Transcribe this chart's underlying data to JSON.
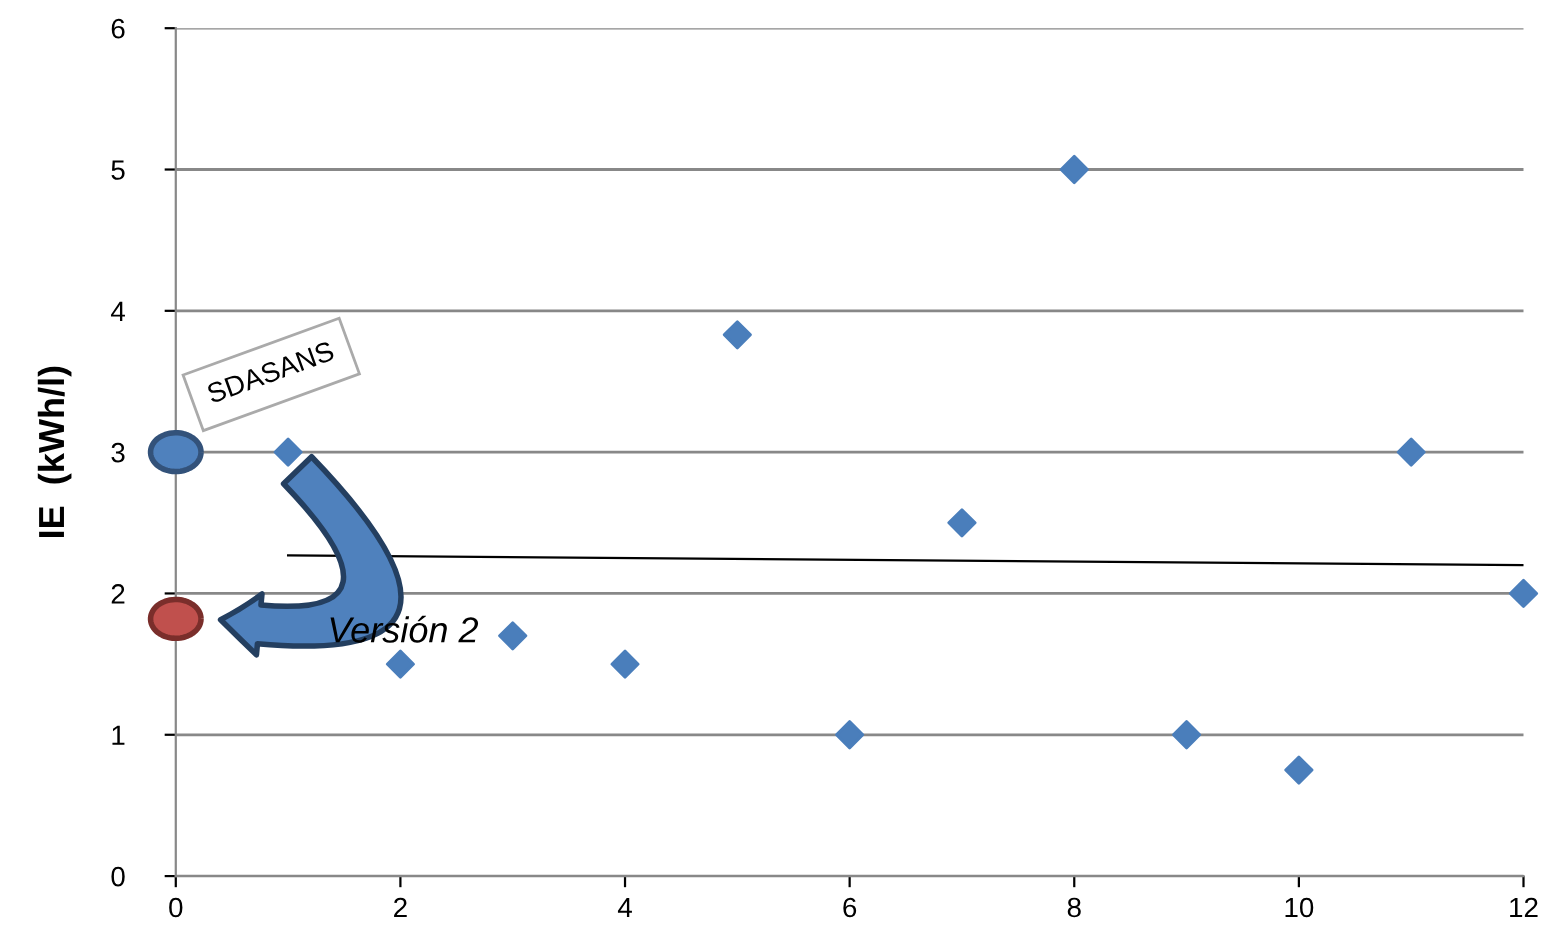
{
  "chart_data": {
    "type": "scatter",
    "ylabel": "IE  (kWh/l)",
    "xlim": [
      0,
      12
    ],
    "xticks": [
      0,
      2,
      4,
      6,
      8,
      10,
      12
    ],
    "ylim": [
      0,
      6
    ],
    "yticks": [
      0,
      1,
      2,
      3,
      4,
      5,
      6
    ],
    "grid": "y",
    "annotations": [
      "SDASANS",
      "Versión 2"
    ],
    "series": [
      {
        "color": "#4a7ebb",
        "marker": "diamond",
        "x": [
          1,
          2,
          3,
          4,
          5,
          6,
          7,
          8,
          9,
          10,
          11,
          12
        ],
        "values": [
          3,
          1.5,
          1.7,
          1.5,
          3.83,
          1,
          2.5,
          5,
          1,
          0.75,
          3,
          2
        ]
      },
      {
        "type": "line",
        "color": "#000000",
        "x": [
          1,
          12
        ],
        "values": [
          2.27,
          2.2
        ]
      },
      {
        "color": "#4f81bd",
        "marker": "circle",
        "x": [
          0
        ],
        "values": [
          3
        ]
      },
      {
        "color": "#c0504d",
        "marker": "circle",
        "x": [
          0
        ],
        "values": [
          1.82
        ]
      }
    ]
  }
}
